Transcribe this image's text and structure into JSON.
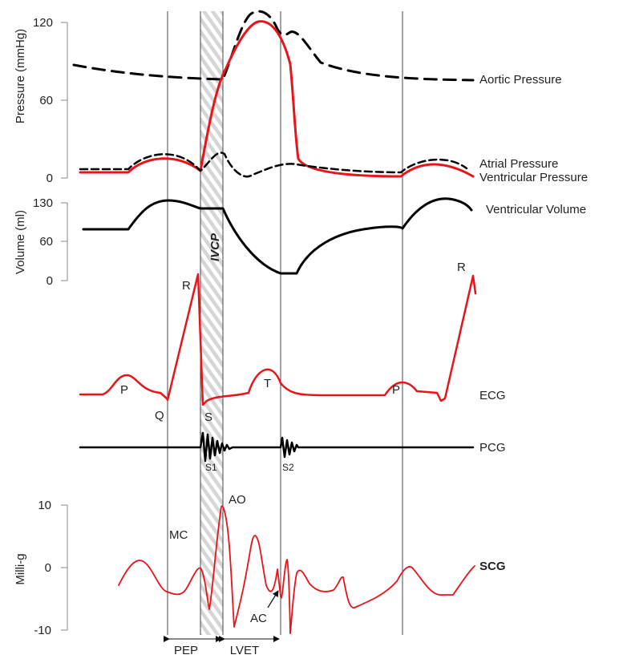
{
  "axes": {
    "pressure": {
      "label": "Pressure (mmHg)",
      "ticks": [
        "120",
        "60",
        "0"
      ]
    },
    "volume": {
      "label": "Volume (ml)",
      "ticks": [
        "130",
        "60",
        "0"
      ]
    },
    "milli_g": {
      "label": "Milli-g",
      "ticks": [
        "10",
        "0",
        "-10"
      ]
    }
  },
  "curves": {
    "aortic_pressure": "Aortic Pressure",
    "atrial_pressure": "Atrial Pressure",
    "ventricular_pressure": "Ventricular Pressure",
    "ventricular_volume": "Ventricular Volume",
    "ecg": "ECG",
    "pcg": "PCG",
    "scg": "SCG"
  },
  "markers": {
    "ecg_p1": "P",
    "ecg_q": "Q",
    "ecg_r1": "R",
    "ecg_s": "S",
    "ecg_t": "T",
    "ecg_p2": "P",
    "ecg_r2": "R",
    "pcg_s1": "S1",
    "pcg_s2": "S2",
    "scg_mc": "MC",
    "scg_ao": "AO",
    "scg_ac": "AC",
    "ivcp": "IVCP"
  },
  "intervals": {
    "pep": "PEP",
    "lvet": "LVET"
  },
  "colors": {
    "red_trace": "#e8141a",
    "black_trace": "#000000"
  }
}
